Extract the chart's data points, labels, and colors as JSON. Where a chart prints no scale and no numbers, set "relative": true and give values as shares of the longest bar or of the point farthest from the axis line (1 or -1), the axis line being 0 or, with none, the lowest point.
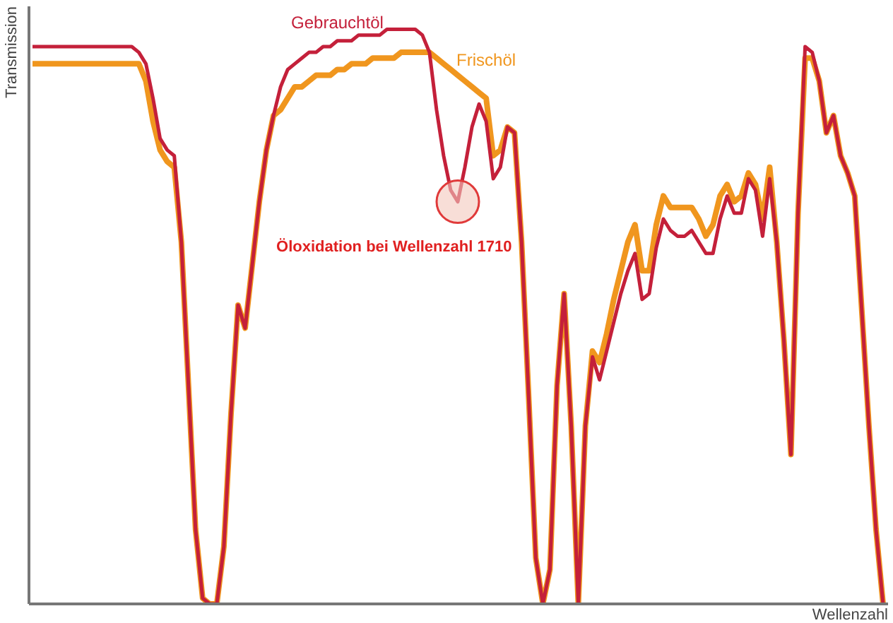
{
  "chart_data": {
    "type": "line",
    "relative": true,
    "xlabel": "Wellenzahl",
    "ylabel": "Transmission",
    "grid": false,
    "marker": "none",
    "line_style": "solid",
    "categories": [
      null,
      null,
      null,
      null,
      null,
      null,
      null,
      null,
      null,
      null,
      null,
      null,
      null,
      null,
      null,
      null,
      null,
      null,
      null,
      null,
      null,
      null,
      null,
      null,
      null,
      null,
      null,
      null,
      null,
      null,
      null,
      null,
      null,
      null,
      null,
      null,
      null,
      null,
      null,
      null,
      null,
      null,
      null,
      null,
      null,
      null,
      null,
      null,
      null,
      null,
      null,
      null,
      null,
      null,
      null,
      null,
      null,
      null,
      null,
      null,
      null,
      null,
      null,
      null,
      null,
      null,
      null,
      null,
      null,
      null,
      null,
      null,
      null,
      null,
      null,
      null,
      null,
      null,
      null,
      null,
      null,
      null,
      null,
      null,
      null,
      null,
      null,
      null,
      null,
      null,
      null,
      null,
      null,
      null,
      null,
      null,
      null,
      null,
      null,
      null,
      null,
      null,
      null,
      null,
      null,
      null,
      null,
      null,
      null,
      null,
      null,
      null,
      null,
      null,
      null,
      null,
      null,
      null,
      null,
      null,
      null
    ],
    "series": [
      {
        "name": "Gebrauchtöl",
        "color": "#c4203a",
        "values": [
          0.97,
          0.97,
          0.97,
          0.97,
          0.97,
          0.97,
          0.97,
          0.97,
          0.97,
          0.97,
          0.97,
          0.97,
          0.97,
          0.97,
          0.97,
          0.96,
          0.94,
          0.88,
          0.81,
          0.79,
          0.78,
          0.63,
          0.38,
          0.13,
          0.01,
          0,
          0,
          0.1,
          0.33,
          0.52,
          0.48,
          0.59,
          0.7,
          0.79,
          0.85,
          0.9,
          0.93,
          0.94,
          0.95,
          0.96,
          0.96,
          0.97,
          0.97,
          0.98,
          0.98,
          0.98,
          0.99,
          0.99,
          0.99,
          0.99,
          1.0,
          1.0,
          1.0,
          1.0,
          1.0,
          0.99,
          0.96,
          0.86,
          0.78,
          0.72,
          0.7,
          0.76,
          0.83,
          0.87,
          0.84,
          0.74,
          0.76,
          0.83,
          0.82,
          0.63,
          0.36,
          0.08,
          0,
          0.06,
          0.38,
          0.54,
          0.31,
          0,
          0.31,
          0.43,
          0.39,
          0.44,
          0.49,
          0.54,
          0.58,
          0.61,
          0.53,
          0.54,
          0.62,
          0.67,
          0.65,
          0.64,
          0.64,
          0.65,
          0.63,
          0.61,
          0.61,
          0.67,
          0.71,
          0.68,
          0.68,
          0.74,
          0.72,
          0.64,
          0.74,
          0.63,
          0.46,
          0.26,
          0.68,
          0.97,
          0.96,
          0.91,
          0.82,
          0.85,
          0.78,
          0.75,
          0.71,
          0.51,
          0.31,
          0.13,
          0
        ]
      },
      {
        "name": "Frischöl",
        "color": "#f0961e",
        "values": [
          0.94,
          0.94,
          0.94,
          0.94,
          0.94,
          0.94,
          0.94,
          0.94,
          0.94,
          0.94,
          0.94,
          0.94,
          0.94,
          0.94,
          0.94,
          0.94,
          0.91,
          0.84,
          0.79,
          0.77,
          0.76,
          0.63,
          0.38,
          0.13,
          0.01,
          0,
          0,
          0.1,
          0.33,
          0.52,
          0.48,
          0.59,
          0.7,
          0.79,
          0.85,
          0.86,
          0.88,
          0.9,
          0.9,
          0.91,
          0.92,
          0.92,
          0.92,
          0.93,
          0.93,
          0.94,
          0.94,
          0.94,
          0.95,
          0.95,
          0.95,
          0.95,
          0.96,
          0.96,
          0.96,
          0.96,
          0.96,
          0.95,
          0.94,
          0.93,
          0.92,
          0.91,
          0.9,
          0.89,
          0.88,
          0.78,
          0.79,
          0.83,
          0.82,
          0.63,
          0.36,
          0.08,
          0,
          0.06,
          0.38,
          0.54,
          0.31,
          0,
          0.31,
          0.44,
          0.42,
          0.47,
          0.53,
          0.58,
          0.63,
          0.66,
          0.58,
          0.58,
          0.66,
          0.71,
          0.69,
          0.69,
          0.69,
          0.69,
          0.67,
          0.64,
          0.66,
          0.71,
          0.73,
          0.7,
          0.71,
          0.75,
          0.73,
          0.67,
          0.76,
          0.63,
          0.46,
          0.26,
          0.68,
          0.95,
          0.95,
          0.91,
          0.82,
          0.85,
          0.78,
          0.75,
          0.71,
          0.51,
          0.31,
          0.13,
          0
        ]
      }
    ],
    "annotations": [
      "Öloxidation bei Wellenzahl 1710"
    ]
  }
}
